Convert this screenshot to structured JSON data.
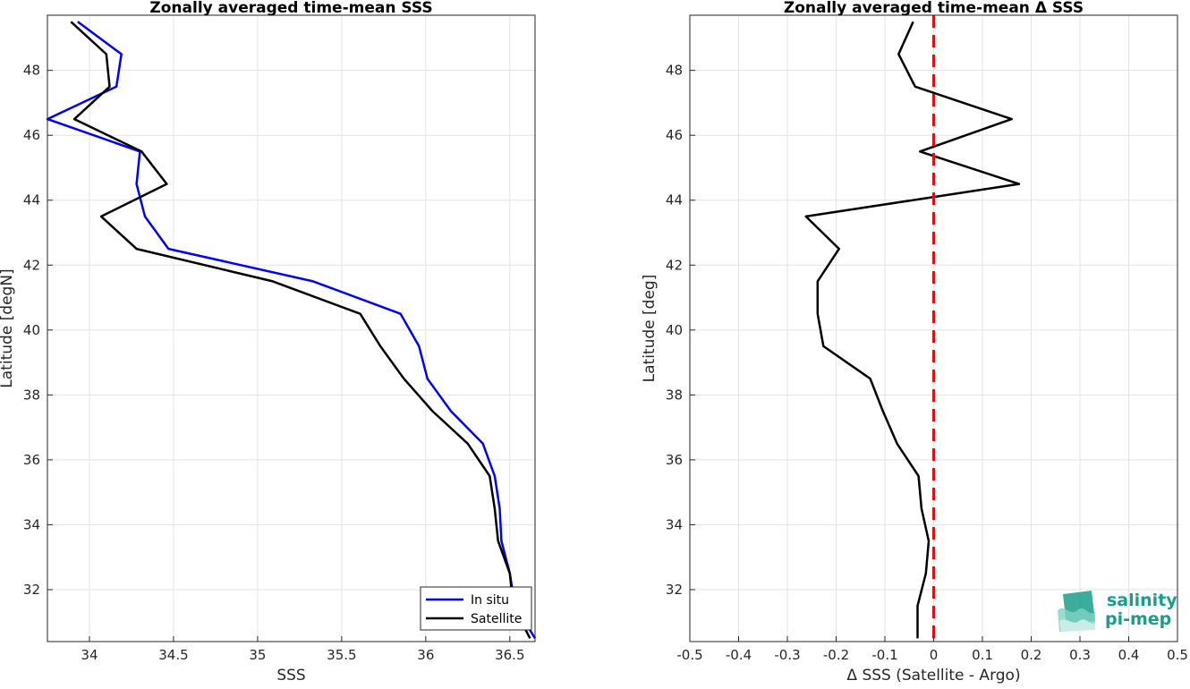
{
  "chart_data": [
    {
      "type": "line",
      "title": "Zonally averaged time-mean SSS",
      "xlabel": "SSS",
      "ylabel": "Latitude [degN]",
      "xlim": [
        33.75,
        36.65
      ],
      "ylim": [
        30.4,
        49.7
      ],
      "xticks": [
        34,
        34.5,
        35,
        35.5,
        36,
        36.5
      ],
      "xtick_labels": [
        "34",
        "34.5",
        "35",
        "35.5",
        "36",
        "36.5"
      ],
      "yticks": [
        32,
        34,
        36,
        38,
        40,
        42,
        44,
        46,
        48
      ],
      "ytick_labels": [
        "32",
        "34",
        "36",
        "38",
        "40",
        "42",
        "44",
        "46",
        "48"
      ],
      "grid": true,
      "legend": "bottom-right",
      "series": [
        {
          "name": "In situ",
          "color": "#0000ff",
          "points": [
            [
              36.65,
              30.5
            ],
            [
              36.53,
              31.5
            ],
            [
              36.5,
              32.5
            ],
            [
              36.45,
              33.5
            ],
            [
              36.44,
              34.5
            ],
            [
              36.41,
              35.5
            ],
            [
              36.34,
              36.5
            ],
            [
              36.15,
              37.5
            ],
            [
              36.01,
              38.5
            ],
            [
              35.96,
              39.5
            ],
            [
              35.85,
              40.5
            ],
            [
              35.33,
              41.5
            ],
            [
              34.47,
              42.5
            ],
            [
              34.33,
              43.5
            ],
            [
              34.28,
              44.5
            ],
            [
              34.3,
              45.5
            ],
            [
              33.75,
              46.5
            ],
            [
              34.16,
              47.5
            ],
            [
              34.19,
              48.5
            ],
            [
              33.93,
              49.5
            ]
          ]
        },
        {
          "name": "Satellite",
          "color": "#000000",
          "points": [
            [
              36.62,
              30.5
            ],
            [
              36.52,
              31.5
            ],
            [
              36.5,
              32.5
            ],
            [
              36.43,
              33.5
            ],
            [
              36.41,
              34.5
            ],
            [
              36.38,
              35.5
            ],
            [
              36.25,
              36.5
            ],
            [
              36.04,
              37.5
            ],
            [
              35.87,
              38.5
            ],
            [
              35.73,
              39.5
            ],
            [
              35.61,
              40.5
            ],
            [
              35.09,
              41.5
            ],
            [
              34.28,
              42.5
            ],
            [
              34.07,
              43.5
            ],
            [
              34.46,
              44.5
            ],
            [
              34.31,
              45.5
            ],
            [
              33.91,
              46.5
            ],
            [
              34.12,
              47.5
            ],
            [
              34.1,
              48.5
            ],
            [
              33.89,
              49.5
            ]
          ]
        }
      ]
    },
    {
      "type": "line",
      "title": "Zonally averaged time-mean Δ SSS",
      "xlabel": "Δ SSS (Satellite - Argo)",
      "ylabel": "Latitude [deg]",
      "xlim": [
        -0.5,
        0.5
      ],
      "ylim": [
        30.4,
        49.7
      ],
      "xticks": [
        -0.5,
        -0.4,
        -0.3,
        -0.2,
        -0.1,
        0,
        0.1,
        0.2,
        0.3,
        0.4,
        0.5
      ],
      "xtick_labels": [
        "-0.5",
        "-0.4",
        "-0.3",
        "-0.2",
        "-0.1",
        "0",
        "0.1",
        "0.2",
        "0.3",
        "0.4",
        "0.5"
      ],
      "yticks": [
        32,
        34,
        36,
        38,
        40,
        42,
        44,
        46,
        48
      ],
      "ytick_labels": [
        "32",
        "34",
        "36",
        "38",
        "40",
        "42",
        "44",
        "46",
        "48"
      ],
      "grid": true,
      "reference_line": {
        "x": 0,
        "color": "#e01010",
        "style": "dashed"
      },
      "series": [
        {
          "color": "#000000",
          "points": [
            [
              -0.033,
              30.5
            ],
            [
              -0.033,
              31.5
            ],
            [
              -0.016,
              32.5
            ],
            [
              -0.01,
              33.5
            ],
            [
              -0.025,
              34.5
            ],
            [
              -0.031,
              35.5
            ],
            [
              -0.075,
              36.5
            ],
            [
              -0.104,
              37.5
            ],
            [
              -0.13,
              38.5
            ],
            [
              -0.226,
              39.5
            ],
            [
              -0.238,
              40.5
            ],
            [
              -0.238,
              41.5
            ],
            [
              -0.194,
              42.5
            ],
            [
              -0.262,
              43.5
            ],
            [
              0.175,
              44.5
            ],
            [
              -0.028,
              45.5
            ],
            [
              0.16,
              46.5
            ],
            [
              -0.038,
              47.5
            ],
            [
              -0.072,
              48.5
            ],
            [
              -0.042,
              49.5
            ]
          ]
        }
      ]
    }
  ],
  "logo": {
    "line1": "salinity",
    "line2": "pi-mep",
    "color": "#1a9e8c"
  }
}
